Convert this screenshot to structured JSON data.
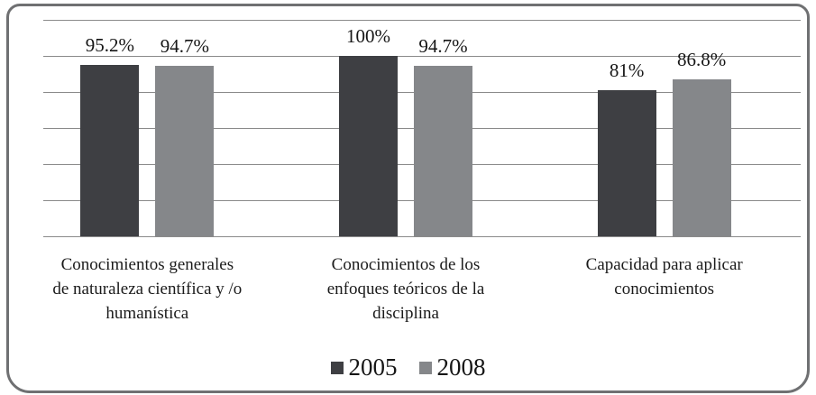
{
  "chart_data": {
    "type": "bar",
    "title": "",
    "xlabel": "",
    "ylabel": "",
    "ylim": [
      0,
      120
    ],
    "gridline_step": 20,
    "grid": true,
    "legend_position": "bottom",
    "categories": [
      [
        "Conocimientos generales",
        "de naturaleza científica y /o",
        "humanística"
      ],
      [
        "Conocimientos de los",
        "enfoques teóricos de la",
        "disciplina"
      ],
      [
        "Capacidad para aplicar",
        "conocimientos"
      ]
    ],
    "series": [
      {
        "name": "2005",
        "color": "#3e3f43",
        "values": [
          95.2,
          100,
          81
        ],
        "labels": [
          "95.2%",
          "100%",
          "81%"
        ]
      },
      {
        "name": "2008",
        "color": "#85878a",
        "values": [
          94.7,
          94.7,
          86.8
        ],
        "labels": [
          "94.7%",
          "94.7%",
          "86.8%"
        ]
      }
    ]
  },
  "colors": {
    "gridline": "#8a8a8a",
    "frame_border": "#6f7072",
    "background": "#ffffff",
    "text": "#1b1b1b"
  }
}
